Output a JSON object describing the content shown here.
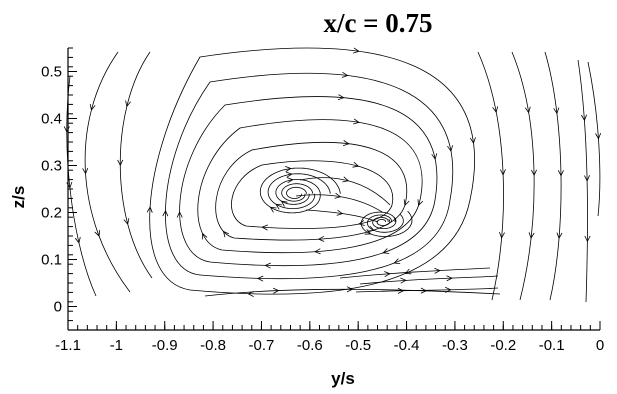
{
  "chart_data": {
    "type": "streamline",
    "title": "x/c = 0.75",
    "xlabel": "y/s",
    "ylabel": "z/s",
    "xlim": [
      -1.1,
      0
    ],
    "ylim": [
      -0.05,
      0.55
    ],
    "x_ticks": [
      "-1.1",
      "-1",
      "-0.9",
      "-0.8",
      "-0.7",
      "-0.6",
      "-0.5",
      "-0.4",
      "-0.3",
      "-0.2",
      "-0.1",
      "0"
    ],
    "y_ticks": [
      "0",
      "0.1",
      "0.2",
      "0.3",
      "0.4",
      "0.5"
    ],
    "grid": false,
    "vortices": [
      {
        "center": [
          -0.63,
          0.24
        ],
        "rotation": "clockwise"
      },
      {
        "center": [
          -0.45,
          0.18
        ],
        "rotation": "counterclockwise"
      }
    ]
  }
}
